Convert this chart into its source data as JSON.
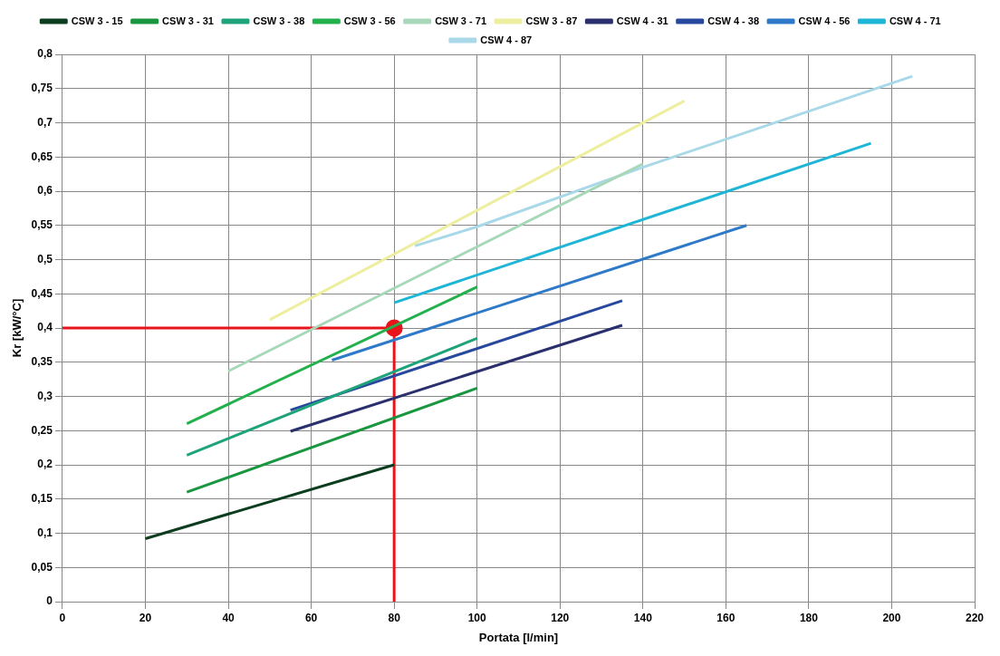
{
  "chart_data": {
    "type": "line",
    "xlabel": "Portata [l/min]",
    "ylabel": "Kr [kW/°C]",
    "xlim": [
      0,
      220
    ],
    "xticks": [
      0,
      20,
      40,
      60,
      80,
      100,
      120,
      140,
      160,
      180,
      200,
      220
    ],
    "ylim": [
      0,
      0.8
    ],
    "yticks": [
      0,
      {
        "value": 0.05,
        "label": "0,05"
      },
      {
        "value": 0.1,
        "label": "0,1"
      },
      {
        "value": 0.15,
        "label": "0,15"
      },
      {
        "value": 0.2,
        "label": "0,2"
      },
      {
        "value": 0.25,
        "label": "0,25"
      },
      {
        "value": 0.3,
        "label": "0,3"
      },
      {
        "value": 0.35,
        "label": "0,35"
      },
      {
        "value": 0.4,
        "label": "0,4"
      },
      {
        "value": 0.45,
        "label": "0,45"
      },
      {
        "value": 0.5,
        "label": "0,5"
      },
      {
        "value": 0.55,
        "label": "0,55"
      },
      {
        "value": 0.6,
        "label": "0,6"
      },
      {
        "value": 0.65,
        "label": "0,65"
      },
      {
        "value": 0.7,
        "label": "0,7"
      },
      {
        "value": 0.75,
        "label": "0,75"
      },
      {
        "value": 0.8,
        "label": "0,8"
      }
    ],
    "grid": true,
    "legend": "top",
    "marker": "none",
    "line_style": "solid",
    "series": [
      {
        "name": "CSW 3 - 15",
        "color": "#0b3d1e",
        "x": [
          20,
          80
        ],
        "values": [
          0.092,
          0.2
        ]
      },
      {
        "name": "CSW 3 - 31",
        "color": "#1a9641",
        "x": [
          30,
          100
        ],
        "values": [
          0.16,
          0.312
        ]
      },
      {
        "name": "CSW 3 - 38",
        "color": "#1fa37a",
        "x": [
          30,
          100
        ],
        "values": [
          0.214,
          0.385
        ]
      },
      {
        "name": "CSW 3 - 56",
        "color": "#22b14c",
        "x": [
          30,
          100
        ],
        "values": [
          0.26,
          0.46
        ]
      },
      {
        "name": "CSW 3 - 71",
        "color": "#a8d8b9",
        "x": [
          40,
          140
        ],
        "values": [
          0.337,
          0.64
        ]
      },
      {
        "name": "CSW 3 - 87",
        "color": "#eeeea0",
        "x": [
          50,
          150
        ],
        "values": [
          0.412,
          0.732
        ]
      },
      {
        "name": "CSW 4 - 31",
        "color": "#2a2f6e",
        "x": [
          55,
          135
        ],
        "values": [
          0.249,
          0.404
        ]
      },
      {
        "name": "CSW 4 - 38",
        "color": "#27489c",
        "x": [
          55,
          135
        ],
        "values": [
          0.28,
          0.44
        ]
      },
      {
        "name": "CSW 4 - 56",
        "color": "#2f7ac8",
        "x": [
          65,
          165
        ],
        "values": [
          0.353,
          0.55
        ]
      },
      {
        "name": "CSW 4 - 71",
        "color": "#1fb5d6",
        "x": [
          80,
          195
        ],
        "values": [
          0.437,
          0.67
        ]
      },
      {
        "name": "CSW 4 - 87",
        "color": "#a9d9e8",
        "x": [
          85,
          100,
          140,
          205
        ],
        "values": [
          0.52,
          0.548,
          0.635,
          0.768
        ]
      },
      {
        "type": "line",
        "color": "#e8141c",
        "x": [
          0,
          80,
          80
        ],
        "values": [
          0.4,
          0.4,
          0
        ]
      },
      {
        "type": "scatter",
        "marker": "circle",
        "color": "#e8141c",
        "x": [
          80
        ],
        "values": [
          0.4
        ]
      }
    ]
  }
}
